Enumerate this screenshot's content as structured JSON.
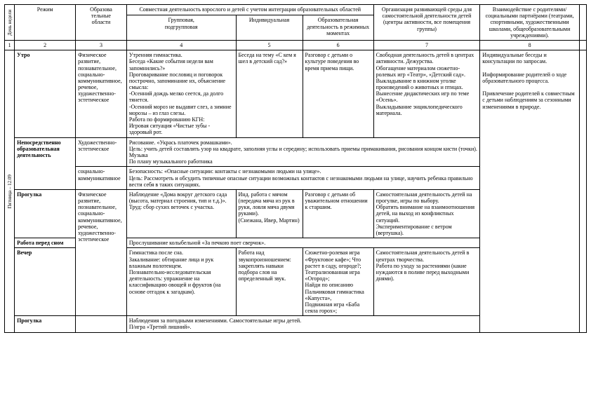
{
  "header": {
    "day_col": "День недели",
    "rezhim": "Режим",
    "oblasti": "Образова\nтельные\nобласти",
    "joint": "Совместная деятельность взрослого и детей с учетом интеграции образовательных областей",
    "group": "Групповая,\nподгрупповая",
    "individual": "Индивидуальная",
    "regime_activity": "Образовательная деятельность в режимных моментах",
    "environment": "Организация развивающей среды для самостоятельной деятельности детей (центры активности, все помещения группы)",
    "parents": "Взаимодействие с родителями/ социальными партнёрами (театрами, спортивными, художественными школами, общеобразовательными учреждениями)."
  },
  "numbers": {
    "n1": "1",
    "n2": "2",
    "n3": "3",
    "n4": "4",
    "n5": "5",
    "n6": "6",
    "n7": "7",
    "n8": "8"
  },
  "day_label": "Пятница – 12.09",
  "rows": {
    "morning": {
      "rezhim": "Утро",
      "oblast": "Физическое развитие, познавательное, социально-коммуникативное, речевое, художественно-эстетическое",
      "group": "Утренняя гимнастика.\nБеседа «Какие события недели вам запомнились?»\nПроговаривание пословиц и поговорок построчно, запоминание их, объяснение смысла:\n-Осенний дождь мелко сеется, да долго тянется.\n-Осенний мороз не выдавит слез, а зимние морозы – из глаз слезы.\nРабота по формированию КГН:\nИгровая ситуация «Чистые зубы - здоровый рот.",
      "ind": "Беседа на тему «С кем я шел в детский сад?»",
      "regime": "Разговор с детьми о культуре поведения во время приема пищи.",
      "env": "Свободная деятельность детей в центрах активности. Дежурства.\nОбогащение материалом сюжетно-ролевых игр «Театр», «Детский сад».\nВыкладывание в книжном уголке произведений о животных и птицах.\nВынесение дидактических игр по теме «Осень».\nВыкладывание энциклопедического материала.",
      "parents": "Индивидуальные беседы и консультации по запросам.\n\nИнформирование родителей о ходе образовательного процесса.\n\nПривлечение родителей к совместным с детьми наблюдениям за сезонными изменениями в природе."
    },
    "nod1": {
      "rezhim": "Непосредственно образовательная деятельность",
      "oblast": "Художественно-эстетическое",
      "text": "Рисование. «Укрась платочек ромашками».\nЦель: учить детей составлять узор на квадрате, заполняя углы и середину; использовать приемы примакивания, рисования концом кисти (точки).\nМузыка\nПо плану музыкального работника"
    },
    "nod2": {
      "oblast": "социально-коммуникативное",
      "text": "Безопасность: «Опасные ситуации: контакты с незнакомыми людьми на улице».\nЦель: Рассмотреть и обсудить типичные опасные ситуации возможных контактов с незнакомыми людьми на улице, научить ребенка правильно вести себя в таких ситуациях."
    },
    "walk": {
      "rezhim": "Прогулка",
      "oblast": "Физическое развитие, познавательное, социально-коммуникативное, речевое, художественно-эстетическое",
      "group": "Наблюдение «Дома вокруг детского сада (высота, материал строения, тип и т.д.)».\nТруд: сбор сухих веточек с участка.",
      "ind": "Инд. работа с мячом (передача мяча из рук в руки, ловля мяча двумя руками).\n(Снежана, Ивер, Мартин)",
      "regime": "Разговор с детьми об уважительном отношении к старшим.",
      "env": "Самостоятельная деятельность детей на прогулке, игры по выбору.\nОбратить внимание на взаимоотношения детей, на выход из конфликтных ситуаций.\nЭкспериментирование с ветром (вертушка)."
    },
    "beforesleep": {
      "rezhim": "Работа перед сном",
      "text": "Прослушивание колыбельной «За печкою поет сверчок»."
    },
    "evening": {
      "rezhim": "Вечер",
      "group": "Гимнастика после сна.\nЗакаливание: обтирание лица и рук влажным полотенцем.\nПознавательно-исследовательская деятельность: упражнение на классификацию овощей и фруктов (на основе отгадок к загадкам).",
      "ind": "Работа над звукопроизношением: закреплять навыки подбора слов на определенный звук.",
      "regime": "Сюжетно-ролевая игра «Фруктовое кафе»;   Что растет в саду, огороде?;\nТеатрализованная игра «Огород»;\nНайди по описанию\nПальчиковая гимнастика «Капуста»,\nПодвижная игра «Баба сеяла горох»;",
      "env": "Самостоятельная деятельность детей в центрах творчества.\nРабота по уходу за растениями (какие нуждаются в поливе перед выходными днями)."
    },
    "walk2": {
      "rezhim": "Прогулка",
      "text": "Наблюдения за погодными изменениями. Самостоятельные игры детей.\nП/игра «Третий лишний»."
    }
  }
}
